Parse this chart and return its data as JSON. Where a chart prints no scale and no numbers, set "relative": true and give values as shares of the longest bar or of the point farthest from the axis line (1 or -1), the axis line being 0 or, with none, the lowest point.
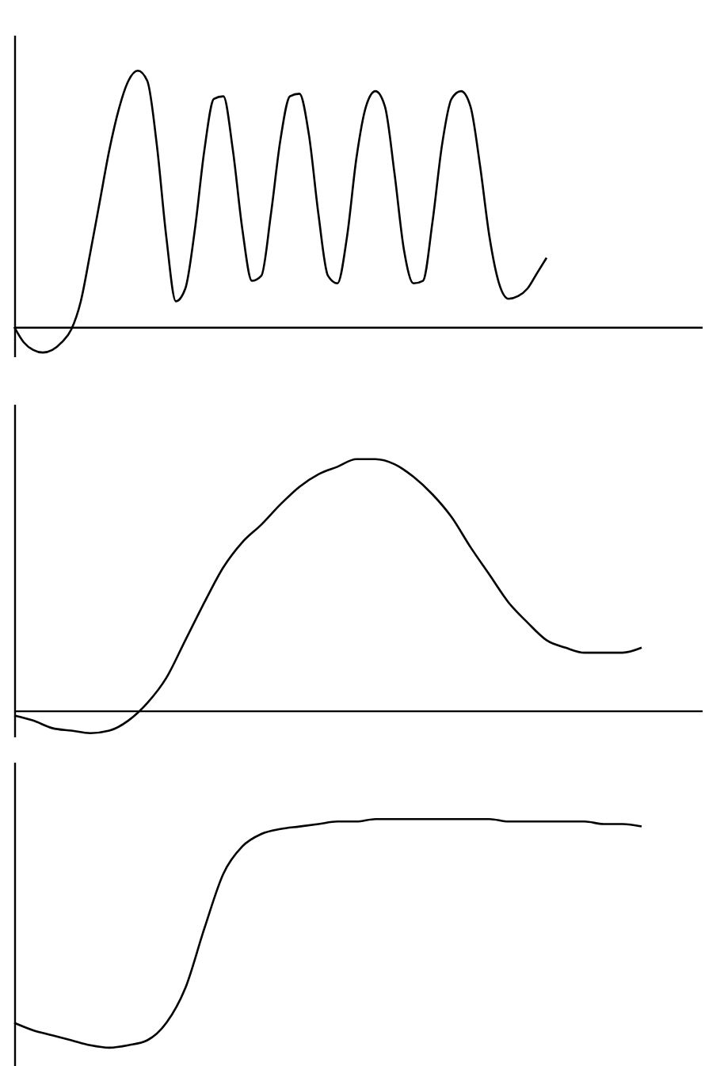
{
  "chart_data": [
    {
      "type": "line",
      "relative": true,
      "tick_labels": false,
      "categories": [
        null,
        null,
        null,
        null,
        null,
        null,
        null,
        null,
        null,
        null,
        null,
        null,
        null,
        null,
        null,
        null,
        null,
        null,
        null,
        null,
        null,
        null,
        null,
        null,
        null,
        null,
        null,
        null,
        null,
        null,
        null,
        null,
        null,
        null,
        null,
        null,
        null,
        null,
        null,
        null,
        null,
        null,
        null,
        null,
        null,
        null,
        null,
        null,
        null,
        null,
        null,
        null,
        null,
        null,
        null,
        null,
        null
      ],
      "series": [
        {
          "color": "#000000",
          "values": [
            0,
            -0.06,
            -0.09,
            -0.1,
            -0.09,
            -0.06,
            -0.01,
            0.1,
            0.29,
            0.49,
            0.69,
            0.85,
            0.96,
            1,
            0.96,
            0.71,
            0.35,
            0.1,
            0.15,
            0.38,
            0.69,
            0.89,
            0.9,
            0.69,
            0.38,
            0.18,
            0.2,
            0.44,
            0.73,
            0.9,
            0.91,
            0.75,
            0.44,
            0.2,
            0.17,
            0.35,
            0.66,
            0.86,
            0.92,
            0.86,
            0.6,
            0.3,
            0.17,
            0.18,
            0.41,
            0.71,
            0.89,
            0.92,
            0.86,
            0.63,
            0.35,
            0.17,
            0.11,
            0.12,
            0.15,
            0.21,
            0.27
          ]
        }
      ]
    },
    {
      "type": "line",
      "relative": true,
      "tick_labels": false,
      "categories": [
        null,
        null,
        null,
        null,
        null,
        null,
        null,
        null,
        null,
        null,
        null,
        null,
        null,
        null,
        null,
        null,
        null,
        null,
        null,
        null,
        null,
        null,
        null,
        null,
        null,
        null,
        null,
        null,
        null,
        null,
        null,
        null,
        null,
        null
      ],
      "series": [
        {
          "color": "#000000",
          "values": [
            -0.02,
            -0.04,
            -0.07,
            -0.08,
            -0.09,
            -0.08,
            -0.04,
            0.03,
            0.13,
            0.28,
            0.43,
            0.57,
            0.67,
            0.74,
            0.82,
            0.89,
            0.94,
            0.97,
            1,
            1,
            0.98,
            0.93,
            0.86,
            0.77,
            0.65,
            0.54,
            0.43,
            0.35,
            0.28,
            0.25,
            0.23,
            0.23,
            0.23,
            0.25
          ]
        }
      ]
    },
    {
      "type": "line",
      "relative": true,
      "tick_labels": false,
      "categories": [
        null,
        null,
        null,
        null,
        null,
        null,
        null,
        null,
        null,
        null,
        null,
        null,
        null,
        null,
        null,
        null,
        null,
        null,
        null,
        null,
        null,
        null,
        null,
        null,
        null,
        null,
        null,
        null,
        null,
        null,
        null,
        null,
        null,
        null
      ],
      "series": [
        {
          "color": "#000000",
          "values": [
            0.18,
            0.15,
            0.13,
            0.11,
            0.09,
            0.08,
            0.09,
            0.11,
            0.18,
            0.32,
            0.56,
            0.78,
            0.89,
            0.94,
            0.96,
            0.97,
            0.98,
            0.99,
            0.99,
            1,
            1,
            1,
            1,
            1,
            1,
            1,
            0.99,
            0.99,
            0.99,
            0.99,
            0.99,
            0.98,
            0.98,
            0.97
          ]
        }
      ]
    }
  ]
}
